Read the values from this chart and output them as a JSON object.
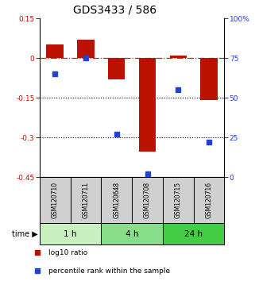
{
  "title": "GDS3433 / 586",
  "samples": [
    "GSM120710",
    "GSM120711",
    "GSM120648",
    "GSM120708",
    "GSM120715",
    "GSM120716"
  ],
  "groups": [
    {
      "label": "1 h",
      "color": "#c8f0c0",
      "indices": [
        0,
        1
      ]
    },
    {
      "label": "4 h",
      "color": "#88dd88",
      "indices": [
        2,
        3
      ]
    },
    {
      "label": "24 h",
      "color": "#44cc44",
      "indices": [
        4,
        5
      ]
    }
  ],
  "log10_ratio": [
    0.05,
    0.07,
    -0.08,
    -0.355,
    0.01,
    -0.16
  ],
  "percentile_rank": [
    65,
    75,
    27,
    2,
    55,
    22
  ],
  "ylim_left": [
    -0.45,
    0.15
  ],
  "ylim_right": [
    0,
    100
  ],
  "yticks_left": [
    0.15,
    0,
    -0.15,
    -0.3,
    -0.45
  ],
  "yticks_right": [
    100,
    75,
    50,
    25,
    0
  ],
  "bar_color": "#bb1100",
  "dot_color": "#2244cc",
  "zero_line_color": "#cc2200",
  "grid_color": "#000000",
  "bg_color": "#ffffff",
  "bar_width": 0.55,
  "title_fontsize": 10,
  "legend_items": [
    "log10 ratio",
    "percentile rank within the sample"
  ]
}
